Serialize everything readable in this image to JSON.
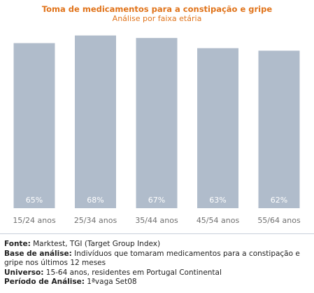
{
  "chart_data": {
    "type": "bar",
    "title": "Toma de medicamentos para a constipação e gripe",
    "subtitle": "Análise por faixa etária",
    "categories": [
      "15/24 anos",
      "25/34 anos",
      "35/44 anos",
      "45/54 anos",
      "55/64 anos"
    ],
    "values": [
      65,
      68,
      67,
      63,
      62
    ],
    "value_labels": [
      "65%",
      "68%",
      "67%",
      "63%",
      "62%"
    ],
    "ylim": [
      0,
      75
    ],
    "grid": false,
    "bar_color": "#b0bccb",
    "label_color": "#ffffff"
  },
  "footer": {
    "fonte_label": "Fonte:",
    "fonte_value": "Marktest, TGI (Target Group Index)",
    "base_label": "Base de análise:",
    "base_value": "Indivíduos que tomaram medicamentos para a constipação e gripe nos últimos 12 meses",
    "universo_label": "Universo:",
    "universo_value": "15-64 anos, residentes em Portugal Continental",
    "periodo_label": "Período de Análise:",
    "periodo_value": "1ªvaga Set08"
  }
}
